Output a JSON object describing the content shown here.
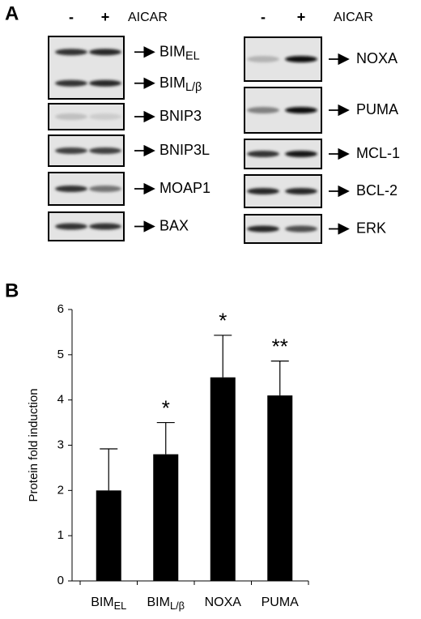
{
  "panel_labels": [
    "A",
    "B"
  ],
  "blot_header": {
    "minus": "-",
    "plus": "+",
    "treatment": "AICAR"
  },
  "blots": {
    "left": [
      [
        {
          "main": "BIM",
          "sub": "EL"
        },
        {
          "main": "BIM",
          "sub": "L/β"
        }
      ],
      [
        "BNIP3"
      ],
      [
        "BNIP3L"
      ],
      [
        "MOAP1"
      ],
      [
        "BAX"
      ]
    ],
    "right": [
      [
        "NOXA"
      ],
      [
        "PUMA"
      ],
      [
        "MCL-1"
      ],
      [
        "BCL-2"
      ],
      [
        "ERK"
      ]
    ]
  },
  "chart_data": {
    "type": "bar",
    "ylabel": "Protein fold induction",
    "categories": [
      {
        "main": "BIM",
        "sub": "EL"
      },
      {
        "main": "BIM",
        "sub": "L/β"
      },
      "NOXA",
      "PUMA"
    ],
    "values": [
      2.0,
      2.8,
      4.5,
      4.1
    ],
    "errors": [
      0.92,
      0.7,
      0.93,
      0.76
    ],
    "value_annotations": [
      null,
      "*",
      "*",
      "**"
    ],
    "color": "#000000",
    "ylim": [
      0,
      6
    ],
    "yticks": [
      0,
      1,
      2,
      3,
      4,
      5,
      6
    ]
  }
}
